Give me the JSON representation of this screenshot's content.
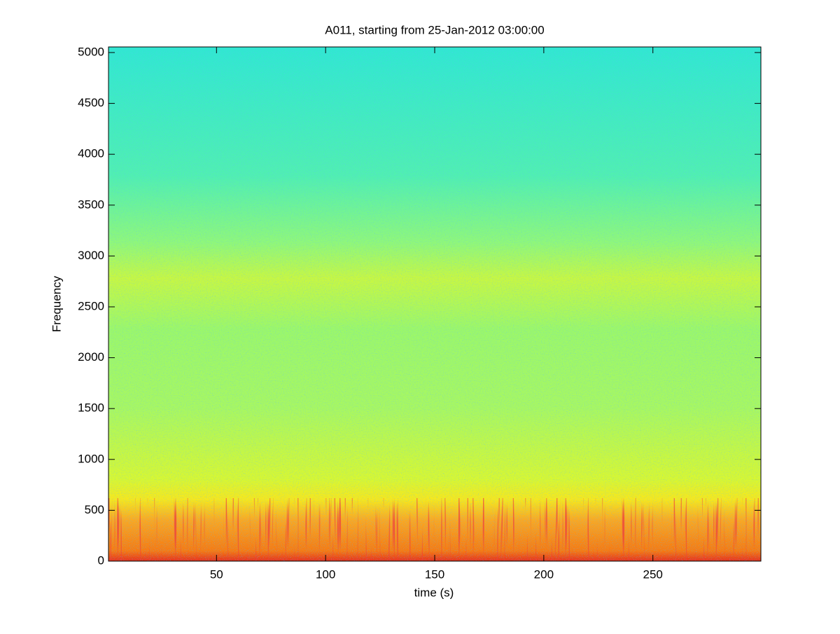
{
  "chart_data": {
    "type": "spectrogram",
    "title": "A011, starting from 25-Jan-2012 03:00:00",
    "xlabel": "time (s)",
    "ylabel": "Frequency",
    "xlim": [
      0.5,
      299.5
    ],
    "ylim": [
      0,
      5055
    ],
    "xticks": [
      50,
      100,
      150,
      200,
      250
    ],
    "yticks": [
      0,
      500,
      1000,
      1500,
      2000,
      2500,
      3000,
      3500,
      4000,
      4500,
      5000
    ],
    "colormap": "jet"
  }
}
